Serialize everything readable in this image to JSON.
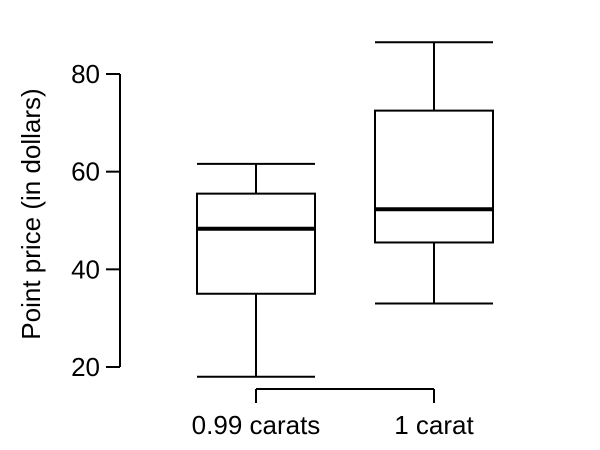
{
  "chart_data": {
    "type": "box",
    "title": "",
    "xlabel": "",
    "ylabel": "Point price (in dollars)",
    "ylim": [
      20,
      80
    ],
    "yticks": [
      20,
      40,
      60,
      80
    ],
    "grid": false,
    "legend": "none",
    "categories": [
      "0.99 carats",
      "1 carat"
    ],
    "boxes": [
      {
        "category": "0.99 carats",
        "min": 18,
        "q1": 35,
        "median": 48.3,
        "q3": 55.5,
        "max": 61.6
      },
      {
        "category": "1 carat",
        "min": 33,
        "q1": 45.5,
        "median": 52.3,
        "q3": 72.5,
        "max": 86.5
      }
    ],
    "colors": {
      "line": "#000000",
      "box_fill": "#ffffff"
    }
  }
}
